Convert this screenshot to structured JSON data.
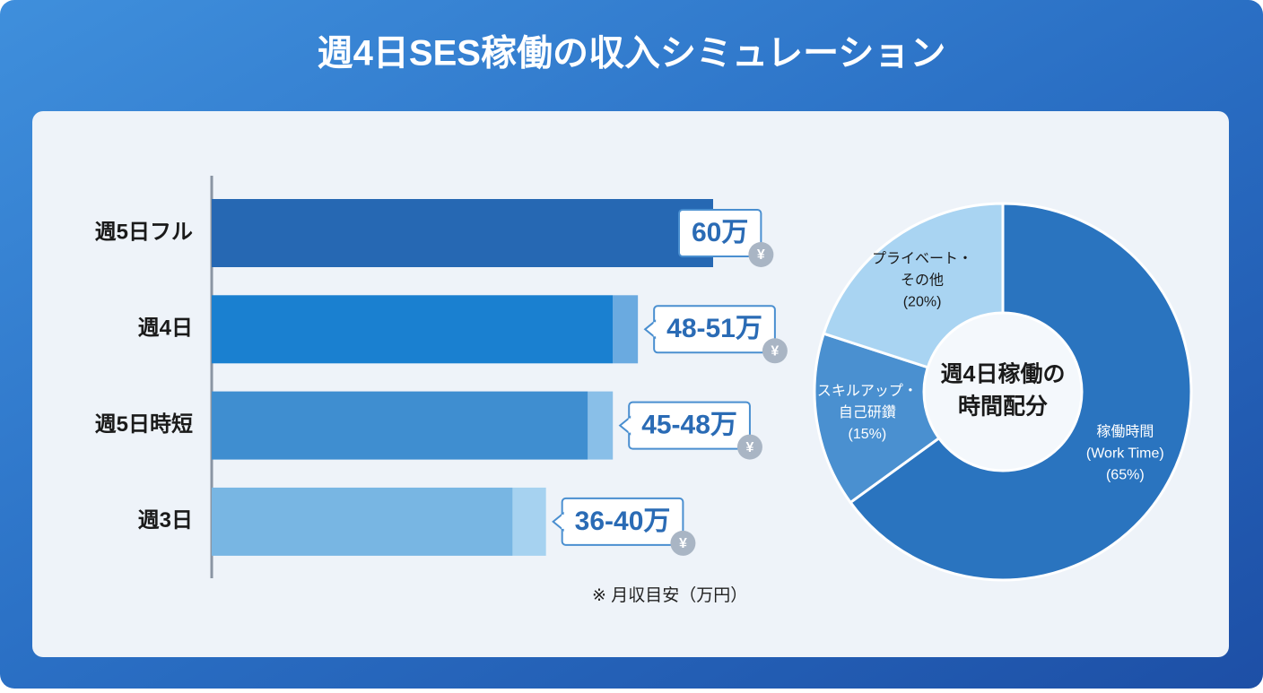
{
  "title": "週4日SES稼働の収入シミュレーション",
  "chart_data": [
    {
      "type": "bar",
      "categories": [
        "週5日フル",
        "週4日",
        "週5日時短",
        "週3日"
      ],
      "values": [
        60,
        48,
        45,
        36
      ],
      "values_max": [
        null,
        51,
        48,
        40
      ],
      "value_labels": [
        "60万",
        "48-51万",
        "45-48万",
        "36-40万"
      ],
      "colors": [
        "#2668b3",
        "#1a80d0",
        "#3f8ed0",
        "#78b6e3"
      ],
      "range_colors": [
        "#2668b3",
        "#6aaae0",
        "#89bfe8",
        "#a6d2f0"
      ],
      "icon": "¥",
      "note": "※ 月収目安（万円）"
    },
    {
      "type": "pie",
      "title_lines": [
        "週4日稼働の",
        "時間配分"
      ],
      "categories": [
        [
          "稼働時間",
          "(Work Time)"
        ],
        [
          "スキルアップ・",
          "自己研鑽"
        ],
        [
          "プライベート・",
          "その他"
        ]
      ],
      "values": [
        65,
        15,
        20
      ],
      "value_labels": [
        "(65%)",
        "(15%)",
        "(20%)"
      ],
      "colors": [
        "#2a74bf",
        "#4a90d0",
        "#a9d4f2"
      ]
    }
  ]
}
